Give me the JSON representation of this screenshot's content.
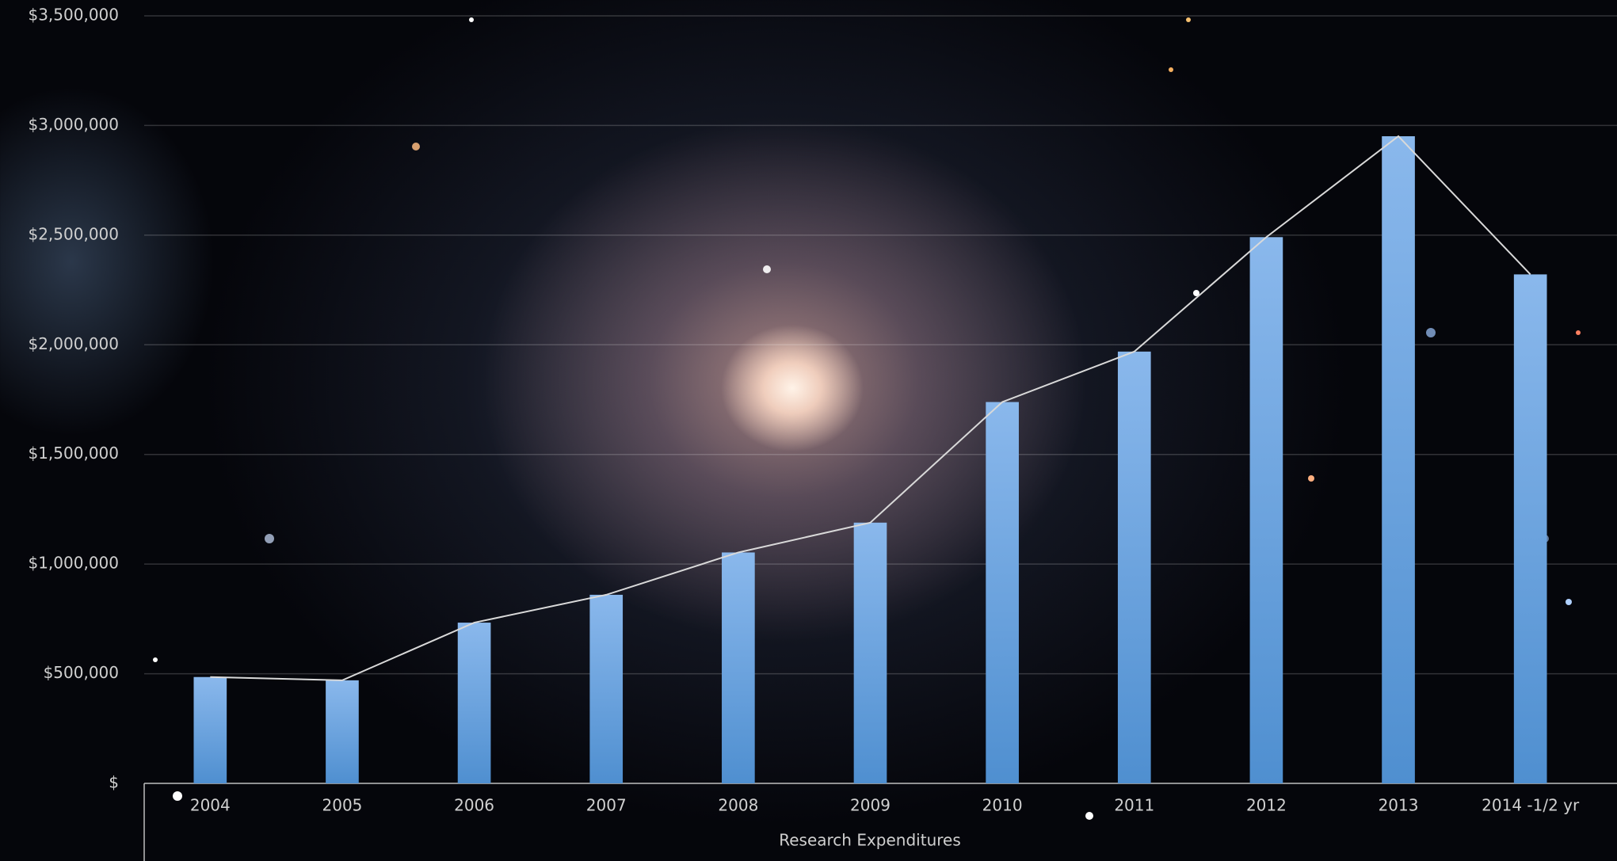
{
  "chart_data": {
    "type": "bar",
    "x_label": "Research Expenditures",
    "categories": [
      "2004",
      "2005",
      "2006",
      "2007",
      "2008",
      "2009",
      "2010",
      "2011",
      "2012",
      "2013",
      "2014 -1/2 yr"
    ],
    "values": [
      485000,
      470000,
      733000,
      860000,
      1053000,
      1189000,
      1739000,
      1969000,
      2491000,
      2951000,
      2321000
    ],
    "color": "#5b9bd5",
    "line": true,
    "line_color": "#d9d9d9",
    "ylim": [
      0,
      3500000
    ],
    "yticks": [
      {
        "value": 0,
        "label": "$"
      },
      {
        "value": 500000,
        "label": "$500,000"
      },
      {
        "value": 1000000,
        "label": "$1,000,000"
      },
      {
        "value": 1500000,
        "label": "$1,500,000"
      },
      {
        "value": 2000000,
        "label": "$2,000,000"
      },
      {
        "value": 2500000,
        "label": "$2,500,000"
      },
      {
        "value": 3000000,
        "label": "$3,000,000"
      },
      {
        "value": 3500000,
        "label": "$3,500,000"
      }
    ],
    "grid": true
  }
}
